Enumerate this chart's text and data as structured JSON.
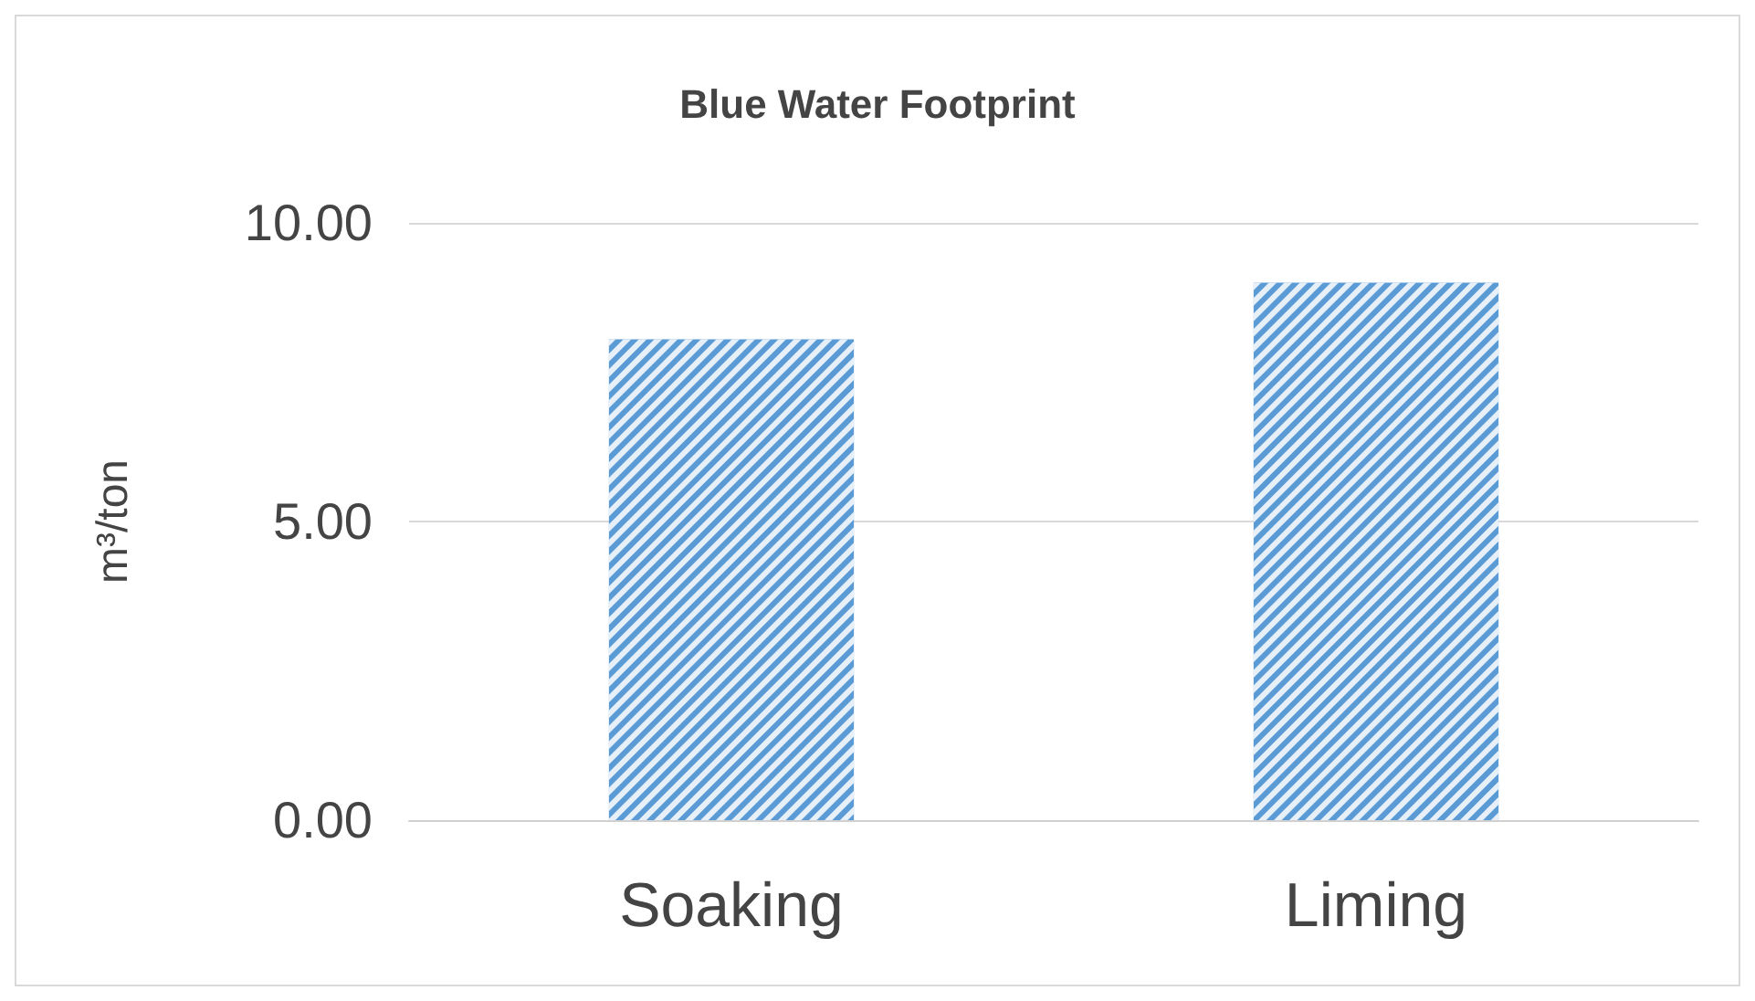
{
  "chart_data": {
    "type": "bar",
    "title": "Blue Water Footprint",
    "ylabel": "m³/ton",
    "categories": [
      "Soaking",
      "Liming"
    ],
    "values": [
      8.05,
      9.0
    ],
    "color": "#5b9bd5",
    "ylim": [
      0,
      10
    ],
    "yticks": [
      {
        "value": 0,
        "label": "0.00"
      },
      {
        "value": 5,
        "label": "5.00"
      },
      {
        "value": 10,
        "label": "10.00"
      }
    ],
    "grid": "y"
  }
}
